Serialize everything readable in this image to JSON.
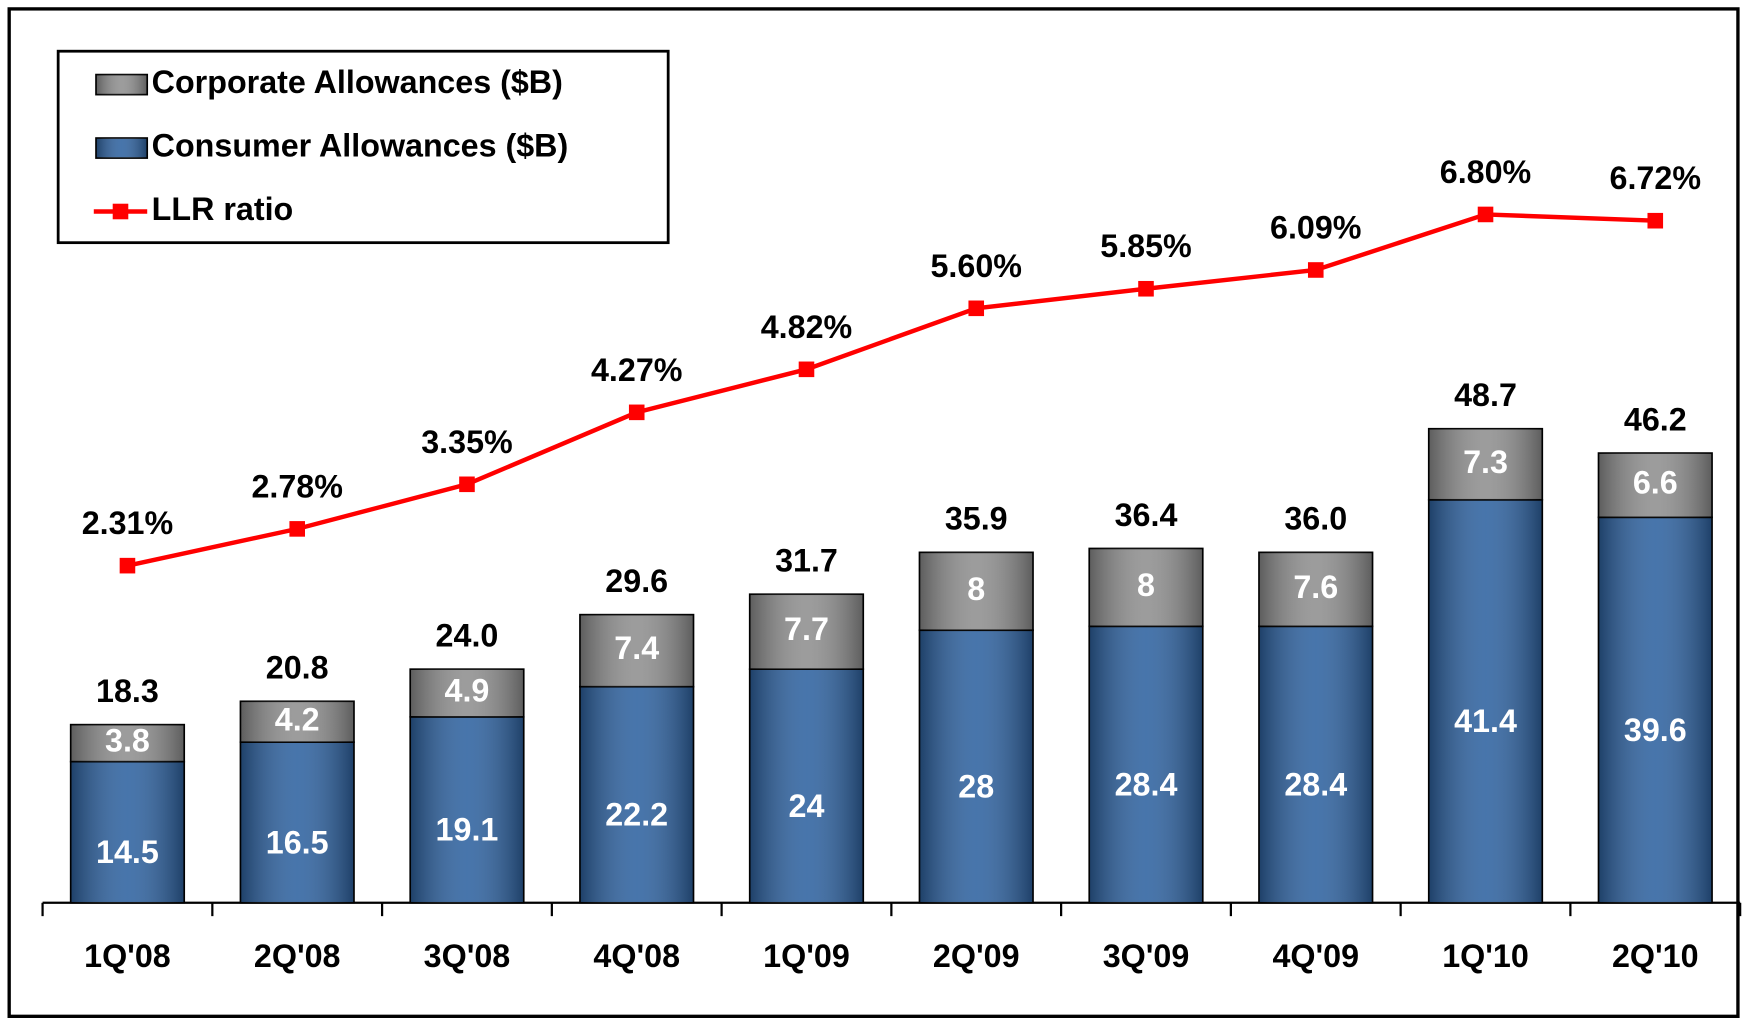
{
  "chart_data": {
    "type": "bar",
    "categories": [
      "1Q'08",
      "2Q'08",
      "3Q'08",
      "4Q'08",
      "1Q'09",
      "2Q'09",
      "3Q'09",
      "4Q'09",
      "1Q'10",
      "2Q'10"
    ],
    "series": [
      {
        "name": "Consumer Allowances ($B)",
        "color": "#2e62a0",
        "values": [
          14.5,
          16.5,
          19.1,
          22.2,
          24.0,
          28.0,
          28.4,
          28.4,
          41.4,
          39.6
        ]
      },
      {
        "name": "Corporate Allowances ($B)",
        "color": "#8f8f8f",
        "values": [
          3.8,
          4.2,
          4.9,
          7.4,
          7.7,
          8.0,
          8.0,
          7.6,
          7.3,
          6.6
        ]
      },
      {
        "name": "LLR ratio",
        "type": "line",
        "axis": "y2",
        "color": "#ff0000",
        "values": [
          2.31,
          2.78,
          3.35,
          4.27,
          4.82,
          5.6,
          5.85,
          6.09,
          6.8,
          6.72
        ],
        "value_labels": [
          "2.31%",
          "2.78%",
          "3.35%",
          "4.27%",
          "4.82%",
          "5.60%",
          "5.85%",
          "6.09%",
          "6.80%",
          "6.72%"
        ]
      }
    ],
    "totals": [
      "18.3",
      "20.8",
      "24.0",
      "29.6",
      "31.7",
      "35.9",
      "36.4",
      "36.0",
      "48.7",
      "46.2"
    ],
    "ylim": [
      0,
      90
    ],
    "y2lim": [
      -2,
      9.2
    ],
    "legend": "top-left"
  }
}
